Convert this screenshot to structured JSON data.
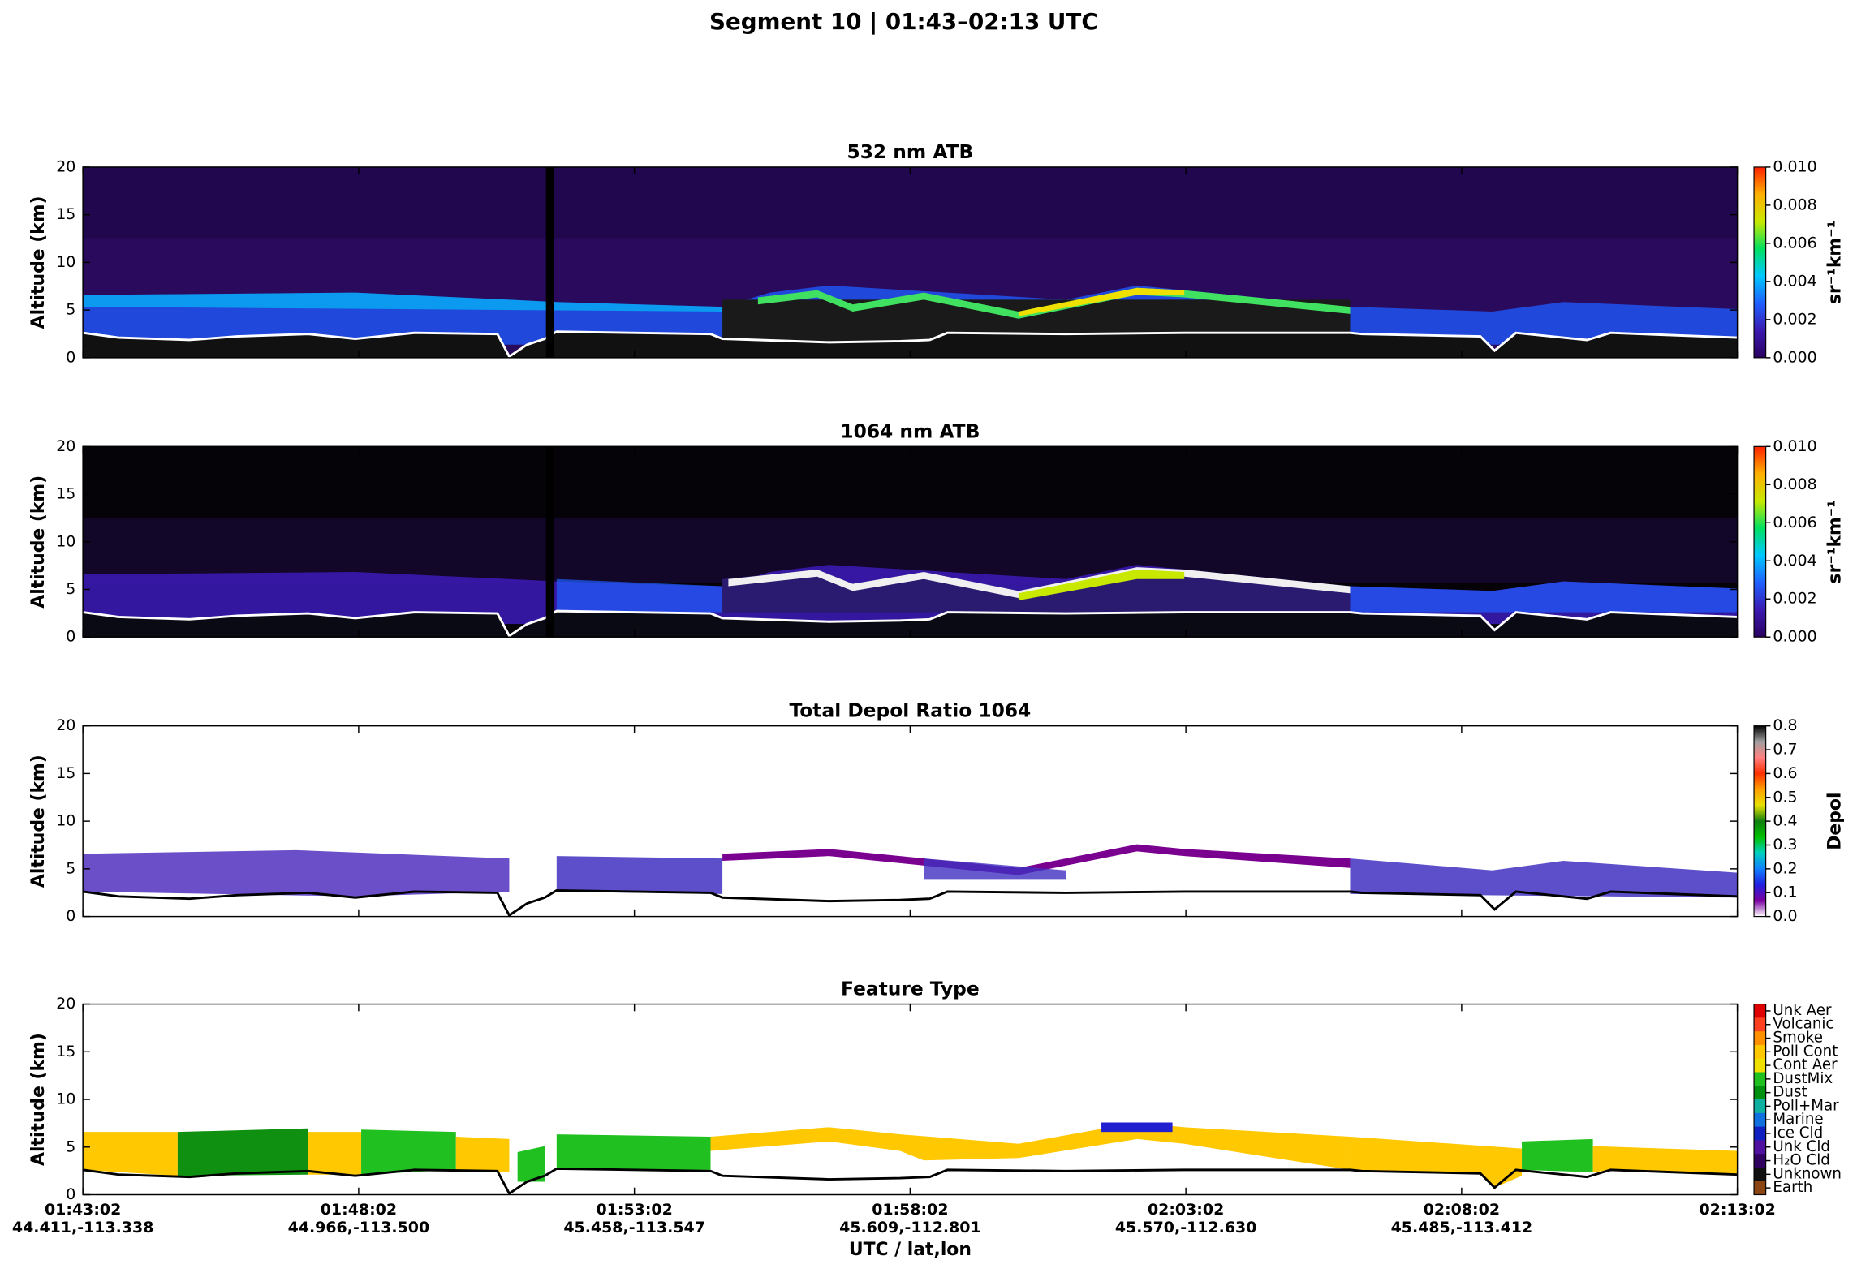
{
  "title": "Segment 10  |  01:43–02:13 UTC",
  "chart_data": [
    {
      "type": "curtain",
      "title": "532 nm ATB",
      "y_label": "Altitude (km)",
      "ylim": [
        0,
        20
      ],
      "yticks": [
        0,
        5,
        10,
        15,
        20
      ],
      "colorbar": {
        "label": "sr⁻¹km⁻¹",
        "lim": [
          0,
          0.01
        ],
        "ticks": [
          {
            "value": 0,
            "label": "0.000"
          },
          {
            "value": 0.002,
            "label": "0.002"
          },
          {
            "value": 0.004,
            "label": "0.004"
          },
          {
            "value": 0.006,
            "label": "0.006"
          },
          {
            "value": 0.008,
            "label": "0.008"
          },
          {
            "value": 0.01,
            "label": "0.010"
          }
        ],
        "colors": [
          "#2a0060",
          "#3a1ab0",
          "#1f60ff",
          "#00c8ff",
          "#00e060",
          "#c8e800",
          "#ffb000",
          "#ff2000"
        ]
      }
    },
    {
      "type": "curtain",
      "title": "1064 nm ATB",
      "y_label": "Altitude (km)",
      "ylim": [
        0,
        20
      ],
      "yticks": [
        0,
        5,
        10,
        15,
        20
      ],
      "colorbar": {
        "label": "sr⁻¹km⁻¹",
        "lim": [
          0,
          0.01
        ],
        "ticks": [
          {
            "value": 0,
            "label": "0.000"
          },
          {
            "value": 0.002,
            "label": "0.002"
          },
          {
            "value": 0.004,
            "label": "0.004"
          },
          {
            "value": 0.006,
            "label": "0.006"
          },
          {
            "value": 0.008,
            "label": "0.008"
          },
          {
            "value": 0.01,
            "label": "0.010"
          }
        ],
        "colors": [
          "#2a0060",
          "#3a1ab0",
          "#1f60ff",
          "#00c8ff",
          "#00e060",
          "#c8e800",
          "#ffb000",
          "#ff2000"
        ]
      }
    },
    {
      "type": "curtain",
      "title": "Total Depol Ratio 1064",
      "y_label": "Altitude (km)",
      "ylim": [
        0,
        20
      ],
      "yticks": [
        0,
        5,
        10,
        15,
        20
      ],
      "colorbar": {
        "label": "Depol",
        "lim": [
          0,
          0.8
        ],
        "ticks": [
          {
            "value": 0,
            "label": "0.0"
          },
          {
            "value": 0.1,
            "label": "0.1"
          },
          {
            "value": 0.2,
            "label": "0.2"
          },
          {
            "value": 0.3,
            "label": "0.3"
          },
          {
            "value": 0.4,
            "label": "0.4"
          },
          {
            "value": 0.5,
            "label": "0.5"
          },
          {
            "value": 0.6,
            "label": "0.6"
          },
          {
            "value": 0.7,
            "label": "0.7"
          },
          {
            "value": 0.8,
            "label": "0.8"
          }
        ],
        "colors": [
          "#ffffff",
          "#7a00a0",
          "#2020e0",
          "#1080ff",
          "#00d0c0",
          "#00c000",
          "#108010",
          "#e8e000",
          "#ffa000",
          "#ff3000",
          "#ff8080",
          "#a0a0a0",
          "#000000"
        ]
      }
    },
    {
      "type": "curtain",
      "title": "Feature Type",
      "y_label": "Altitude (km)",
      "x_label": "UTC / lat,lon",
      "ylim": [
        0,
        20
      ],
      "yticks": [
        0,
        5,
        10,
        15,
        20
      ],
      "categories": [
        "01:43:02",
        "01:48:02",
        "01:53:02",
        "01:58:02",
        "02:03:02",
        "02:08:02",
        "02:13:02"
      ],
      "sublabels": [
        "44.411,-113.338",
        "44.966,-113.500",
        "45.458,-113.547",
        "45.609,-112.801",
        "45.570,-112.630",
        "45.485,-113.412",
        null
      ],
      "legend": {
        "labels": [
          "Unk Aer",
          "Volcanic",
          "Smoke",
          "Poll Cont",
          "Cont Aer",
          "DustMix",
          "Dust",
          "Poll+Mar",
          "Marine",
          "Ice Cld",
          "Unk Cld",
          "H₂O Cld",
          "Unknown",
          "Earth"
        ],
        "colors": [
          "#e00000",
          "#ff4020",
          "#ff9000",
          "#ffc800",
          "#f0e000",
          "#20c020",
          "#009010",
          "#10b0a0",
          "#1070e0",
          "#1020c0",
          "#5010a0",
          "#300060",
          "#101010",
          "#8b4513"
        ]
      }
    }
  ]
}
